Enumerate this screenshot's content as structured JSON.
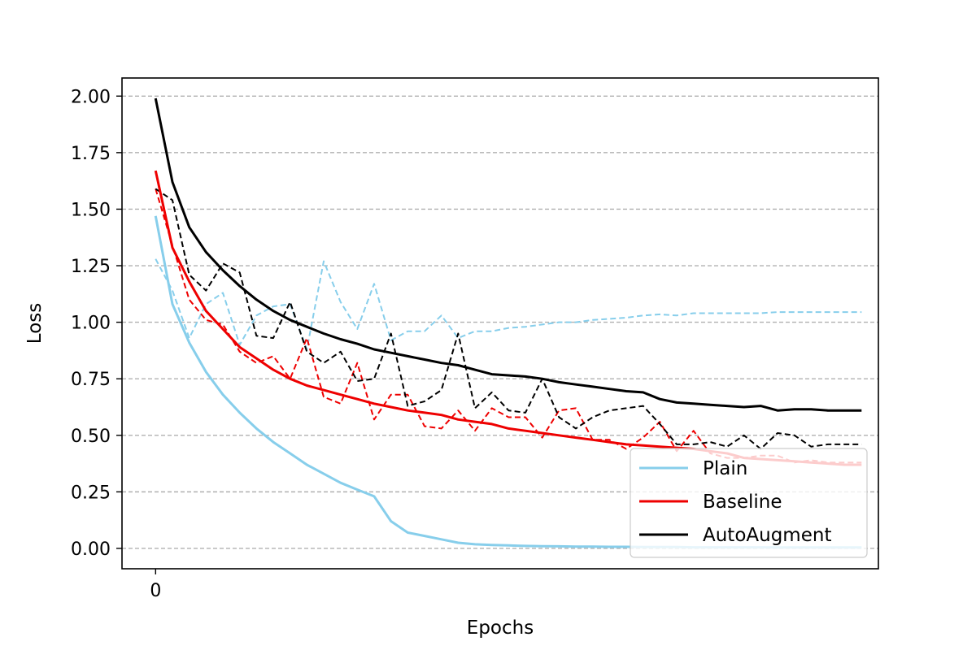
{
  "chart_data": {
    "type": "line",
    "xlabel": "Epochs",
    "ylabel": "Loss",
    "x_ticks": [
      0
    ],
    "y_ticks": [
      "0.00",
      "0.25",
      "0.50",
      "0.75",
      "1.00",
      "1.25",
      "1.50",
      "1.75",
      "2.00"
    ],
    "xlim": [
      -2,
      43
    ],
    "ylim": [
      -0.09,
      2.08
    ],
    "grid": "y-dashed",
    "legend_position": "bottom-right",
    "series": [
      {
        "name": "Plain",
        "style": "solid",
        "color": "#87CEEB",
        "x": [
          0,
          1,
          2,
          3,
          4,
          5,
          6,
          7,
          8,
          9,
          10,
          11,
          12,
          13,
          14,
          15,
          16,
          17,
          18,
          19,
          20,
          21,
          22,
          23,
          24,
          25,
          26,
          27,
          28,
          29,
          30,
          31,
          32,
          33,
          34,
          35,
          36,
          37,
          38,
          39,
          40,
          41,
          42
        ],
        "values": [
          1.47,
          1.08,
          0.91,
          0.78,
          0.68,
          0.6,
          0.53,
          0.47,
          0.42,
          0.37,
          0.33,
          0.29,
          0.26,
          0.23,
          0.12,
          0.07,
          0.055,
          0.04,
          0.025,
          0.018,
          0.015,
          0.013,
          0.011,
          0.01,
          0.009,
          0.008,
          0.008,
          0.007,
          0.007,
          0.006,
          0.006,
          0.006,
          0.005,
          0.005,
          0.005,
          0.005,
          0.005,
          0.004,
          0.004,
          0.004,
          0.004,
          0.004,
          0.004
        ]
      },
      {
        "name": "Baseline",
        "style": "solid",
        "color": "#EE0000",
        "x": [
          0,
          1,
          2,
          3,
          4,
          5,
          6,
          7,
          8,
          9,
          10,
          11,
          12,
          13,
          14,
          15,
          16,
          17,
          18,
          19,
          20,
          21,
          22,
          23,
          24,
          25,
          26,
          27,
          28,
          29,
          30,
          31,
          32,
          33,
          34,
          35,
          36,
          37,
          38,
          39,
          40,
          41,
          42
        ],
        "values": [
          1.67,
          1.33,
          1.18,
          1.05,
          0.97,
          0.89,
          0.84,
          0.79,
          0.75,
          0.72,
          0.7,
          0.68,
          0.66,
          0.64,
          0.625,
          0.61,
          0.6,
          0.59,
          0.57,
          0.56,
          0.55,
          0.53,
          0.52,
          0.51,
          0.5,
          0.49,
          0.48,
          0.47,
          0.46,
          0.455,
          0.45,
          0.445,
          0.44,
          0.43,
          0.42,
          0.4,
          0.395,
          0.39,
          0.385,
          0.38,
          0.375,
          0.37,
          0.37
        ]
      },
      {
        "name": "AutoAugment",
        "style": "solid",
        "color": "#000000",
        "x": [
          0,
          1,
          2,
          3,
          4,
          5,
          6,
          7,
          8,
          9,
          10,
          11,
          12,
          13,
          14,
          15,
          16,
          17,
          18,
          19,
          20,
          21,
          22,
          23,
          24,
          25,
          26,
          27,
          28,
          29,
          30,
          31,
          32,
          33,
          34,
          35,
          36,
          37,
          38,
          39,
          40,
          41,
          42
        ],
        "values": [
          1.99,
          1.62,
          1.42,
          1.31,
          1.23,
          1.16,
          1.1,
          1.05,
          1.01,
          0.98,
          0.95,
          0.925,
          0.905,
          0.88,
          0.865,
          0.85,
          0.835,
          0.82,
          0.81,
          0.79,
          0.77,
          0.765,
          0.76,
          0.75,
          0.735,
          0.725,
          0.715,
          0.705,
          0.695,
          0.69,
          0.66,
          0.645,
          0.64,
          0.635,
          0.63,
          0.625,
          0.63,
          0.61,
          0.615,
          0.615,
          0.61,
          0.61,
          0.61
        ]
      },
      {
        "style": "dashed",
        "color": "#87CEEB",
        "x": [
          0,
          1,
          2,
          3,
          4,
          5,
          6,
          7,
          8,
          9,
          10,
          11,
          12,
          13,
          14,
          15,
          16,
          17,
          18,
          19,
          20,
          21,
          22,
          23,
          24,
          25,
          26,
          27,
          28,
          29,
          30,
          31,
          32,
          33,
          34,
          35,
          36,
          37,
          38,
          39,
          40,
          41,
          42
        ],
        "values": [
          1.28,
          1.14,
          0.93,
          1.08,
          1.13,
          0.9,
          1.03,
          1.07,
          1.08,
          0.88,
          1.27,
          1.09,
          0.97,
          1.17,
          0.92,
          0.96,
          0.96,
          1.03,
          0.93,
          0.96,
          0.96,
          0.975,
          0.98,
          0.99,
          1.0,
          1.0,
          1.01,
          1.015,
          1.02,
          1.03,
          1.035,
          1.03,
          1.04,
          1.04,
          1.04,
          1.04,
          1.04,
          1.045,
          1.045,
          1.045,
          1.045,
          1.045,
          1.045
        ]
      },
      {
        "style": "dashed",
        "color": "#EE0000",
        "x": [
          0,
          1,
          2,
          3,
          4,
          5,
          6,
          7,
          8,
          9,
          10,
          11,
          12,
          13,
          14,
          15,
          16,
          17,
          18,
          19,
          20,
          21,
          22,
          23,
          24,
          25,
          26,
          27,
          28,
          29,
          30,
          31,
          32,
          33,
          34,
          35,
          36,
          37,
          38,
          39,
          40,
          41,
          42
        ],
        "values": [
          1.59,
          1.34,
          1.1,
          1.01,
          0.99,
          0.87,
          0.82,
          0.85,
          0.75,
          0.93,
          0.67,
          0.64,
          0.82,
          0.57,
          0.68,
          0.68,
          0.54,
          0.53,
          0.61,
          0.52,
          0.62,
          0.58,
          0.58,
          0.49,
          0.61,
          0.62,
          0.48,
          0.48,
          0.44,
          0.49,
          0.56,
          0.43,
          0.52,
          0.42,
          0.4,
          0.4,
          0.41,
          0.41,
          0.38,
          0.39,
          0.38,
          0.38,
          0.38
        ]
      },
      {
        "style": "dashed",
        "color": "#000000",
        "x": [
          0,
          1,
          2,
          3,
          4,
          5,
          6,
          7,
          8,
          9,
          10,
          11,
          12,
          13,
          14,
          15,
          16,
          17,
          18,
          19,
          20,
          21,
          22,
          23,
          24,
          25,
          26,
          27,
          28,
          29,
          30,
          31,
          32,
          33,
          34,
          35,
          36,
          37,
          38,
          39,
          40,
          41,
          42
        ],
        "values": [
          1.59,
          1.54,
          1.21,
          1.14,
          1.26,
          1.22,
          0.94,
          0.93,
          1.09,
          0.87,
          0.82,
          0.87,
          0.74,
          0.75,
          0.95,
          0.63,
          0.65,
          0.7,
          0.95,
          0.62,
          0.69,
          0.61,
          0.6,
          0.75,
          0.58,
          0.53,
          0.58,
          0.61,
          0.62,
          0.63,
          0.55,
          0.46,
          0.46,
          0.47,
          0.45,
          0.5,
          0.44,
          0.51,
          0.5,
          0.45,
          0.46,
          0.46,
          0.46
        ]
      }
    ]
  }
}
